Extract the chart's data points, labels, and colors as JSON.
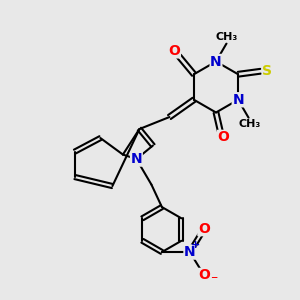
{
  "bg_color": "#e8e8e8",
  "bond_color": "black",
  "bond_width": 1.5,
  "atom_colors": {
    "O": "#ff0000",
    "N": "#0000cd",
    "S": "#cccc00",
    "C": "black"
  },
  "font_size": 10,
  "fig_size": [
    3.0,
    3.0
  ],
  "dpi": 100,
  "xlim": [
    0,
    10
  ],
  "ylim": [
    0,
    10
  ]
}
